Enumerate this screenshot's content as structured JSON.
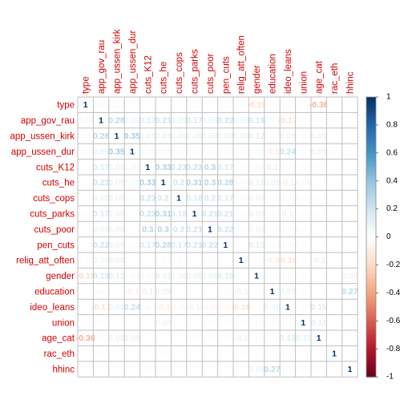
{
  "chart_data": {
    "type": "heatmap",
    "title": "",
    "variables": [
      "type",
      "app_gov_rau",
      "app_ussen_kirk",
      "app_ussen_dur",
      "cuts_K12",
      "cuts_he",
      "cuts_cops",
      "cuts_parks",
      "cuts_poor",
      "pen_cuts",
      "relig_att_often",
      "gender",
      "education",
      "ideo_leans",
      "union",
      "age_cat",
      "rac_eth",
      "hhinc"
    ],
    "matrix": [
      [
        1,
        0.05,
        0.03,
        0.02,
        0.01,
        0.01,
        0.01,
        0.02,
        0.01,
        0.02,
        0.02,
        -0.19,
        0.01,
        -0.02,
        -0.01,
        -0.36,
        0.01,
        0.01
      ],
      [
        0.05,
        1,
        0.28,
        0.09,
        0.17,
        0.21,
        0.09,
        0.17,
        0.09,
        0.22,
        0.08,
        0.19,
        0.03,
        -0.17,
        0.02,
        -0.03,
        0.02,
        0.01
      ],
      [
        0.03,
        0.28,
        1,
        0.35,
        0.09,
        0.09,
        0.09,
        0.09,
        0.09,
        0.09,
        0.09,
        0.12,
        0.02,
        0.09,
        0.02,
        0.09,
        0.01,
        0.01
      ],
      [
        0.02,
        0.09,
        0.35,
        1,
        0.05,
        0.05,
        0.02,
        0.02,
        0.02,
        0.03,
        0.02,
        0.05,
        -0.1,
        0.24,
        0.02,
        0.09,
        0.02,
        0.01
      ],
      [
        0.01,
        0.17,
        0.09,
        0.05,
        1,
        0.33,
        0.23,
        0.23,
        0.3,
        0.17,
        0.02,
        0.05,
        0.1,
        0.04,
        0.02,
        0.02,
        0.01,
        0.02
      ],
      [
        0.01,
        0.21,
        0.09,
        0.05,
        0.33,
        1,
        0.2,
        0.31,
        0.3,
        0.28,
        0.03,
        0.11,
        0.09,
        -0.1,
        0.06,
        0.01,
        0.02,
        0.02
      ],
      [
        0.01,
        0.09,
        0.09,
        0.02,
        0.23,
        0.2,
        1,
        0.18,
        0.2,
        0.17,
        0.03,
        0.08,
        0.02,
        -0.05,
        0.02,
        0.02,
        0.01,
        0.01
      ],
      [
        0.02,
        0.17,
        0.09,
        0.02,
        0.23,
        0.31,
        0.18,
        1,
        0.21,
        0.21,
        0.02,
        0.09,
        0.02,
        0.1,
        0.02,
        0.02,
        0.01,
        0.01
      ],
      [
        0.01,
        0.09,
        0.09,
        0.02,
        0.3,
        0.3,
        0.2,
        0.21,
        1,
        0.22,
        0.02,
        0.08,
        0.02,
        -0.05,
        0.02,
        0.02,
        0.01,
        0.01
      ],
      [
        0.02,
        0.22,
        0.09,
        0.03,
        0.17,
        0.28,
        0.17,
        0.21,
        0.22,
        1,
        0.02,
        0.15,
        0.03,
        -0.05,
        0.02,
        0.02,
        0.01,
        0.01
      ],
      [
        0.02,
        0.08,
        0.09,
        0.02,
        0.02,
        0.03,
        0.03,
        0.02,
        0.02,
        0.02,
        1,
        0.02,
        -0.1,
        -0.16,
        0.02,
        -0.1,
        0.02,
        0.01
      ],
      [
        -0.19,
        0.19,
        0.12,
        0.05,
        0.05,
        0.11,
        0.08,
        0.09,
        0.08,
        0.15,
        0.02,
        1,
        0.02,
        -0.03,
        0.02,
        0.02,
        0.01,
        0.08
      ],
      [
        0.01,
        0.03,
        0.02,
        -0.1,
        0.1,
        0.09,
        0.02,
        0.02,
        0.02,
        0.03,
        -0.1,
        0.02,
        1,
        0.09,
        0.02,
        0.02,
        0.01,
        0.27
      ],
      [
        -0.02,
        -0.17,
        0.09,
        0.24,
        0.04,
        -0.1,
        -0.05,
        0.1,
        -0.05,
        -0.05,
        -0.16,
        -0.03,
        0.09,
        1,
        0.02,
        0.15,
        0.02,
        0.02
      ],
      [
        -0.01,
        0.02,
        0.02,
        0.02,
        0.02,
        0.06,
        0.02,
        0.02,
        0.02,
        0.02,
        0.02,
        0.02,
        0.02,
        0.02,
        1,
        0.11,
        0.01,
        0.02
      ],
      [
        -0.36,
        -0.03,
        0.09,
        0.09,
        0.02,
        0.01,
        0.02,
        0.02,
        0.02,
        0.02,
        -0.1,
        0.02,
        0.02,
        0.15,
        0.11,
        1,
        0.01,
        0.02
      ],
      [
        0.01,
        0.02,
        0.01,
        0.02,
        0.01,
        0.02,
        0.01,
        0.01,
        0.01,
        0.01,
        0.02,
        0.01,
        0.01,
        0.02,
        0.01,
        0.01,
        1,
        0.01
      ],
      [
        0.01,
        0.01,
        0.01,
        0.01,
        0.02,
        0.02,
        0.01,
        0.01,
        0.01,
        0.01,
        0.01,
        0.08,
        0.27,
        0.02,
        0.02,
        0.02,
        0.01,
        1
      ]
    ],
    "colorbar": {
      "ticks": [
        "1",
        "0.8",
        "0.6",
        "0.4",
        "0.2",
        "0",
        "-0.2",
        "-0.4",
        "-0.6",
        "-0.8",
        "-1"
      ],
      "range": [
        -1,
        1
      ]
    },
    "colors": {
      "positive": "#053061",
      "mid": "#ffffff",
      "negative": "#67001f",
      "label": "#d40000",
      "grid": "#bfbfbf"
    }
  }
}
